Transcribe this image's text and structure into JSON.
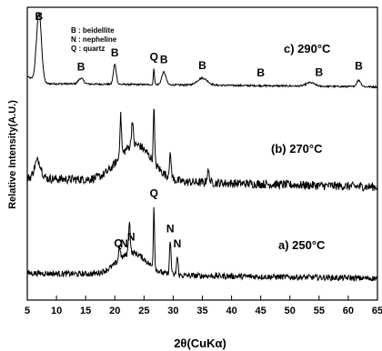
{
  "chart_data": {
    "type": "line",
    "xlabel": "2θ(CuKα)",
    "ylabel": "Relative Intensity(A.U.)",
    "xlim": [
      5,
      65
    ],
    "x_ticks": [
      "5",
      "10",
      "15",
      "20",
      "25",
      "30",
      "35",
      "40",
      "45",
      "50",
      "55",
      "60",
      "65"
    ],
    "grid": false,
    "legend": {
      "placement": "top-left",
      "lines": [
        "B : beidellite",
        "N : nepheline",
        "Q : quartz"
      ]
    },
    "y_units": "arbitrary (relative intensity, stacked traces)",
    "series": [
      {
        "name": "c) 290°C",
        "baseline": 0.08,
        "noise": 0.012,
        "peaks": [
          {
            "x": 7.0,
            "h": 1.0,
            "w": 0.6
          },
          {
            "x": 14.2,
            "h": 0.08,
            "w": 0.6
          },
          {
            "x": 20.0,
            "h": 0.28,
            "w": 0.35
          },
          {
            "x": 26.7,
            "h": 0.22,
            "w": 0.15
          },
          {
            "x": 28.4,
            "h": 0.18,
            "w": 0.5
          },
          {
            "x": 35.0,
            "h": 0.1,
            "w": 1.2
          },
          {
            "x": 53.5,
            "h": 0.05,
            "w": 1.0
          },
          {
            "x": 61.8,
            "h": 0.09,
            "w": 0.5
          }
        ],
        "annotations": [
          {
            "x": 7.0,
            "text": "B"
          },
          {
            "x": 14.2,
            "text": "B"
          },
          {
            "x": 20.0,
            "text": "B"
          },
          {
            "x": 26.7,
            "text": "Q"
          },
          {
            "x": 28.4,
            "text": "B"
          },
          {
            "x": 35.0,
            "text": "B"
          },
          {
            "x": 45.0,
            "text": "B"
          },
          {
            "x": 55.0,
            "text": "B"
          },
          {
            "x": 61.8,
            "text": "B"
          }
        ]
      },
      {
        "name": "(b) 270°C",
        "baseline": 0.2,
        "noise": 0.06,
        "peaks": [
          {
            "x": 6.8,
            "h": 0.25,
            "w": 0.8
          },
          {
            "x": 21.0,
            "h": 0.55,
            "w": 0.2
          },
          {
            "x": 23.0,
            "h": 0.35,
            "w": 0.2
          },
          {
            "x": 26.7,
            "h": 0.8,
            "w": 0.15
          },
          {
            "x": 29.5,
            "h": 0.3,
            "w": 0.25
          },
          {
            "x": 36.0,
            "h": 0.15,
            "w": 0.3
          }
        ],
        "hump": {
          "x": 23.5,
          "h": 0.5,
          "w": 4.0
        }
      },
      {
        "name": "a) 250°C",
        "baseline": 0.12,
        "noise": 0.04,
        "peaks": [
          {
            "x": 20.8,
            "h": 0.2,
            "w": 0.2
          },
          {
            "x": 22.5,
            "h": 0.45,
            "w": 0.2
          },
          {
            "x": 26.7,
            "h": 0.85,
            "w": 0.15
          },
          {
            "x": 29.5,
            "h": 0.45,
            "w": 0.2
          },
          {
            "x": 30.7,
            "h": 0.25,
            "w": 0.2
          }
        ],
        "hump": {
          "x": 23.0,
          "h": 0.3,
          "w": 3.5
        },
        "annotations": [
          {
            "x": 20.6,
            "text": "Q"
          },
          {
            "x": 21.6,
            "text": "N"
          },
          {
            "x": 22.8,
            "text": "N"
          },
          {
            "x": 26.7,
            "text": "Q"
          },
          {
            "x": 29.5,
            "text": "N"
          },
          {
            "x": 30.7,
            "text": "N"
          }
        ]
      }
    ]
  }
}
